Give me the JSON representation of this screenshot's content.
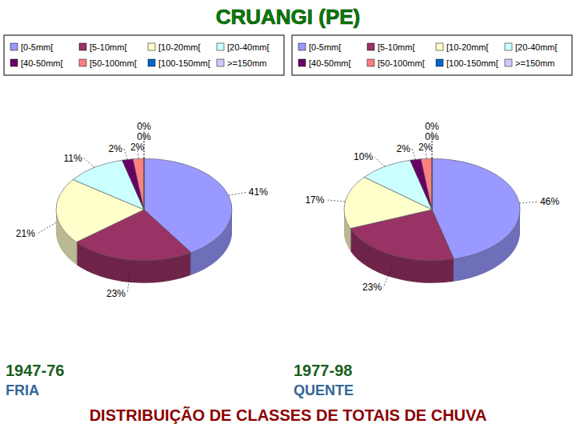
{
  "title": "CRUANGI (PE)",
  "caption": "DISTRIBUIÇÃO DE CLASSES DE TOTAIS DE CHUVA",
  "chart_data": [
    {
      "type": "pie",
      "title": "1947-76",
      "subtitle": "FRIA",
      "categories": [
        "[0-5mm[",
        "[5-10mm[",
        "[10-20mm[",
        "[20-40mm[",
        "[40-50mm[",
        "[50-100mm[",
        "[100-150mm[",
        ">=150mm"
      ],
      "values": [
        41,
        23,
        21,
        11,
        2,
        2,
        0,
        0
      ],
      "value_labels": [
        "41%",
        "23%",
        "21%",
        "11%",
        "2%",
        "2%",
        "0%",
        "0%"
      ],
      "colors": [
        "#9999FF",
        "#993366",
        "#FFFFCC",
        "#CCFFFF",
        "#660066",
        "#FF8080",
        "#0066CC",
        "#CCCCFF"
      ],
      "legend": "top",
      "data_labels": true
    },
    {
      "type": "pie",
      "title": "1977-98",
      "subtitle": "QUENTE",
      "categories": [
        "[0-5mm[",
        "[5-10mm[",
        "[10-20mm[",
        "[20-40mm[",
        "[40-50mm[",
        "[50-100mm[",
        "[100-150mm[",
        ">=150mm"
      ],
      "values": [
        46,
        23,
        17,
        10,
        2,
        2,
        0,
        0
      ],
      "value_labels": [
        "46%",
        "23%",
        "17%",
        "10%",
        "2%",
        "2%",
        "0%",
        "0%"
      ],
      "colors": [
        "#9999FF",
        "#993366",
        "#FFFFCC",
        "#CCFFFF",
        "#660066",
        "#FF8080",
        "#0066CC",
        "#CCCCFF"
      ],
      "legend": "top",
      "data_labels": true
    }
  ]
}
